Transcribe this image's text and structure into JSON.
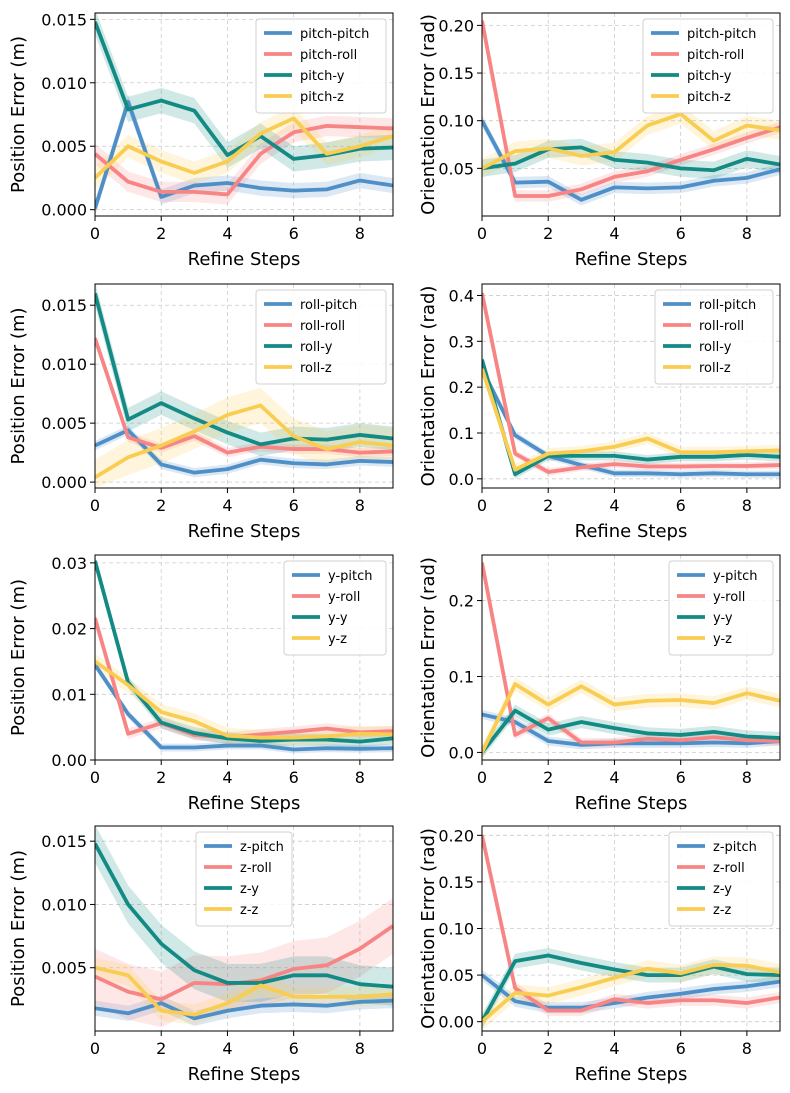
{
  "colors": {
    "pitch": "#4f8fc8",
    "roll": "#f88585",
    "y": "#138a84",
    "z": "#f8cd52"
  },
  "chart_data": [
    {
      "type": "line",
      "xlabel": "Refine Steps",
      "ylabel": "Position Error (m)",
      "xlim": [
        0,
        9
      ],
      "ylim": [
        -0.0005,
        0.0155
      ],
      "xticks": [
        0,
        2,
        4,
        6,
        8
      ],
      "xtick_labels": [
        "0",
        "2",
        "4",
        "6",
        "8"
      ],
      "yticks": [
        0,
        0.005,
        0.01,
        0.015
      ],
      "ytick_labels": [
        "0.000",
        "0.005",
        "0.010",
        "0.015"
      ],
      "legend_pos": "top-right",
      "x": [
        0,
        1,
        2,
        3,
        4,
        5,
        6,
        7,
        8,
        9
      ],
      "series": [
        {
          "name": "pitch-pitch",
          "color_key": "pitch",
          "values": [
            0.0001,
            0.0085,
            0.001,
            0.0019,
            0.0021,
            0.0017,
            0.0015,
            0.0016,
            0.0023,
            0.0019
          ],
          "band": 0.0006
        },
        {
          "name": "pitch-roll",
          "color_key": "roll",
          "values": [
            0.0044,
            0.0022,
            0.0014,
            0.0014,
            0.0012,
            0.0044,
            0.0061,
            0.0066,
            0.0065,
            0.0064
          ],
          "band": 0.0008
        },
        {
          "name": "pitch-y",
          "color_key": "y",
          "values": [
            0.0148,
            0.0079,
            0.0086,
            0.0078,
            0.0043,
            0.0058,
            0.004,
            0.0043,
            0.0048,
            0.0049
          ],
          "band": 0.001
        },
        {
          "name": "pitch-z",
          "color_key": "z",
          "values": [
            0.0025,
            0.005,
            0.0038,
            0.0029,
            0.0038,
            0.006,
            0.0072,
            0.0044,
            0.005,
            0.0058
          ],
          "band": 0.0009
        }
      ]
    },
    {
      "type": "line",
      "xlabel": "Refine Steps",
      "ylabel": "Orientation Error (rad)",
      "xlim": [
        0,
        9
      ],
      "ylim": [
        0,
        0.213
      ],
      "xticks": [
        0,
        2,
        4,
        6,
        8
      ],
      "xtick_labels": [
        "0",
        "2",
        "4",
        "6",
        "8"
      ],
      "yticks": [
        0.05,
        0.1,
        0.15,
        0.2
      ],
      "ytick_labels": [
        "0.05",
        "0.10",
        "0.15",
        "0.20"
      ],
      "legend_pos": "top-right",
      "x": [
        0,
        1,
        2,
        3,
        4,
        5,
        6,
        7,
        8,
        9
      ],
      "series": [
        {
          "name": "pitch-pitch",
          "color_key": "pitch",
          "values": [
            0.1,
            0.035,
            0.036,
            0.017,
            0.03,
            0.029,
            0.03,
            0.037,
            0.04,
            0.049
          ],
          "band": 0.006
        },
        {
          "name": "pitch-roll",
          "color_key": "roll",
          "values": [
            0.205,
            0.021,
            0.021,
            0.028,
            0.041,
            0.047,
            0.059,
            0.07,
            0.082,
            0.093
          ],
          "band": 0.006
        },
        {
          "name": "pitch-y",
          "color_key": "y",
          "values": [
            0.05,
            0.055,
            0.07,
            0.072,
            0.059,
            0.056,
            0.05,
            0.048,
            0.06,
            0.054
          ],
          "band": 0.009
        },
        {
          "name": "pitch-z",
          "color_key": "z",
          "values": [
            0.05,
            0.068,
            0.071,
            0.063,
            0.067,
            0.095,
            0.107,
            0.079,
            0.095,
            0.09
          ],
          "band": 0.01
        }
      ]
    },
    {
      "type": "line",
      "xlabel": "Refine Steps",
      "ylabel": "Position Error (m)",
      "xlim": [
        0,
        9
      ],
      "ylim": [
        -0.0005,
        0.0168
      ],
      "xticks": [
        0,
        2,
        4,
        6,
        8
      ],
      "xtick_labels": [
        "0",
        "2",
        "4",
        "6",
        "8"
      ],
      "yticks": [
        0,
        0.005,
        0.01,
        0.015
      ],
      "ytick_labels": [
        "0.000",
        "0.005",
        "0.010",
        "0.015"
      ],
      "legend_pos": "top-right",
      "x": [
        0,
        1,
        2,
        3,
        4,
        5,
        6,
        7,
        8,
        9
      ],
      "series": [
        {
          "name": "roll-pitch",
          "color_key": "pitch",
          "values": [
            0.0031,
            0.0044,
            0.0015,
            0.0008,
            0.0011,
            0.0019,
            0.0016,
            0.0015,
            0.0018,
            0.0017
          ],
          "band": 0.0004
        },
        {
          "name": "roll-roll",
          "color_key": "roll",
          "values": [
            0.0122,
            0.0038,
            0.0029,
            0.0039,
            0.0025,
            0.003,
            0.0028,
            0.0028,
            0.0025,
            0.0026
          ],
          "band": 0.0004
        },
        {
          "name": "roll-y",
          "color_key": "y",
          "values": [
            0.016,
            0.0053,
            0.0067,
            0.0054,
            0.0042,
            0.0032,
            0.0037,
            0.0036,
            0.004,
            0.0037
          ],
          "band": 0.001
        },
        {
          "name": "roll-z",
          "color_key": "z",
          "values": [
            0.0004,
            0.0021,
            0.0031,
            0.0043,
            0.0057,
            0.0065,
            0.0039,
            0.0028,
            0.0034,
            0.0031
          ],
          "band": 0.0015
        }
      ]
    },
    {
      "type": "line",
      "xlabel": "Refine Steps",
      "ylabel": "Orientation Error (rad)",
      "xlim": [
        0,
        9
      ],
      "ylim": [
        -0.02,
        0.425
      ],
      "xticks": [
        0,
        2,
        4,
        6,
        8
      ],
      "xtick_labels": [
        "0",
        "2",
        "4",
        "6",
        "8"
      ],
      "yticks": [
        0,
        0.1,
        0.2,
        0.3,
        0.4
      ],
      "ytick_labels": [
        "0.0",
        "0.1",
        "0.2",
        "0.3",
        "0.4"
      ],
      "legend_pos": "top-right",
      "x": [
        0,
        1,
        2,
        3,
        4,
        5,
        6,
        7,
        8,
        9
      ],
      "series": [
        {
          "name": "roll-pitch",
          "color_key": "pitch",
          "values": [
            0.24,
            0.095,
            0.05,
            0.03,
            0.012,
            0.012,
            0.01,
            0.012,
            0.01,
            0.01
          ],
          "band": 0.008
        },
        {
          "name": "roll-roll",
          "color_key": "roll",
          "values": [
            0.405,
            0.055,
            0.015,
            0.025,
            0.032,
            0.027,
            0.027,
            0.028,
            0.028,
            0.03
          ],
          "band": 0.008
        },
        {
          "name": "roll-y",
          "color_key": "y",
          "values": [
            0.26,
            0.01,
            0.05,
            0.05,
            0.05,
            0.042,
            0.048,
            0.048,
            0.052,
            0.048
          ],
          "band": 0.01
        },
        {
          "name": "roll-z",
          "color_key": "z",
          "values": [
            0.24,
            0.02,
            0.055,
            0.06,
            0.07,
            0.088,
            0.058,
            0.058,
            0.06,
            0.062
          ],
          "band": 0.012
        }
      ]
    },
    {
      "type": "line",
      "xlabel": "Refine Steps",
      "ylabel": "Position Error (m)",
      "xlim": [
        0,
        9
      ],
      "ylim": [
        0,
        0.0312
      ],
      "xticks": [
        0,
        2,
        4,
        6,
        8
      ],
      "xtick_labels": [
        "0",
        "2",
        "4",
        "6",
        "8"
      ],
      "yticks": [
        0,
        0.01,
        0.02,
        0.03
      ],
      "ytick_labels": [
        "0.00",
        "0.01",
        "0.02",
        "0.03"
      ],
      "legend_pos": "top-right",
      "x": [
        0,
        1,
        2,
        3,
        4,
        5,
        6,
        7,
        8,
        9
      ],
      "series": [
        {
          "name": "y-pitch",
          "color_key": "pitch",
          "values": [
            0.0145,
            0.007,
            0.0019,
            0.0019,
            0.0022,
            0.0022,
            0.0016,
            0.0018,
            0.0017,
            0.0018
          ],
          "band": 0.0006
        },
        {
          "name": "y-roll",
          "color_key": "roll",
          "values": [
            0.0216,
            0.004,
            0.0056,
            0.0038,
            0.0034,
            0.0039,
            0.0043,
            0.0048,
            0.0042,
            0.0044
          ],
          "band": 0.0008
        },
        {
          "name": "y-y",
          "color_key": "y",
          "values": [
            0.0303,
            0.0118,
            0.0057,
            0.0041,
            0.0033,
            0.0029,
            0.0031,
            0.0031,
            0.0028,
            0.0033
          ],
          "band": 0.0009
        },
        {
          "name": "y-z",
          "color_key": "z",
          "values": [
            0.015,
            0.0114,
            0.0073,
            0.0059,
            0.0037,
            0.0034,
            0.0034,
            0.0036,
            0.004,
            0.0039
          ],
          "band": 0.0012
        }
      ]
    },
    {
      "type": "line",
      "xlabel": "Refine Steps",
      "ylabel": "Orientation Error (rad)",
      "xlim": [
        0,
        9
      ],
      "ylim": [
        -0.01,
        0.26
      ],
      "xticks": [
        0,
        2,
        4,
        6,
        8
      ],
      "xtick_labels": [
        "0",
        "2",
        "4",
        "6",
        "8"
      ],
      "yticks": [
        0,
        0.1,
        0.2
      ],
      "ytick_labels": [
        "0.0",
        "0.1",
        "0.2"
      ],
      "legend_pos": "top-right",
      "x": [
        0,
        1,
        2,
        3,
        4,
        5,
        6,
        7,
        8,
        9
      ],
      "series": [
        {
          "name": "y-pitch",
          "color_key": "pitch",
          "values": [
            0.05,
            0.04,
            0.015,
            0.01,
            0.012,
            0.012,
            0.012,
            0.013,
            0.012,
            0.015
          ],
          "band": 0.006
        },
        {
          "name": "y-roll",
          "color_key": "roll",
          "values": [
            0.25,
            0.023,
            0.045,
            0.013,
            0.013,
            0.018,
            0.016,
            0.02,
            0.016,
            0.015
          ],
          "band": 0.006
        },
        {
          "name": "y-y",
          "color_key": "y",
          "values": [
            0.0,
            0.055,
            0.03,
            0.04,
            0.032,
            0.025,
            0.023,
            0.027,
            0.021,
            0.019
          ],
          "band": 0.008
        },
        {
          "name": "y-z",
          "color_key": "z",
          "values": [
            0.0,
            0.09,
            0.063,
            0.087,
            0.063,
            0.068,
            0.069,
            0.065,
            0.078,
            0.068
          ],
          "band": 0.009
        }
      ]
    },
    {
      "type": "line",
      "xlabel": "Refine Steps",
      "ylabel": "Position Error (m)",
      "xlim": [
        0,
        9
      ],
      "ylim": [
        0,
        0.0162
      ],
      "xticks": [
        0,
        2,
        4,
        6,
        8
      ],
      "xtick_labels": [
        "0",
        "2",
        "4",
        "6",
        "8"
      ],
      "yticks": [
        0.005,
        0.01,
        0.015
      ],
      "ytick_labels": [
        "0.005",
        "0.010",
        "0.015"
      ],
      "legend_pos": "top-center",
      "x": [
        0,
        1,
        2,
        3,
        4,
        5,
        6,
        7,
        8,
        9
      ],
      "series": [
        {
          "name": "z-pitch",
          "color_key": "pitch",
          "values": [
            0.0018,
            0.0014,
            0.0022,
            0.001,
            0.0016,
            0.002,
            0.0021,
            0.002,
            0.0023,
            0.0024
          ],
          "band": 0.0006
        },
        {
          "name": "z-roll",
          "color_key": "roll",
          "values": [
            0.0043,
            0.0031,
            0.0025,
            0.0038,
            0.0037,
            0.004,
            0.0049,
            0.0052,
            0.0065,
            0.0083
          ],
          "band": 0.0022
        },
        {
          "name": "z-y",
          "color_key": "y",
          "values": [
            0.0148,
            0.01,
            0.0069,
            0.0048,
            0.0038,
            0.0038,
            0.0044,
            0.0044,
            0.0037,
            0.0035
          ],
          "band": 0.0015
        },
        {
          "name": "z-z",
          "color_key": "z",
          "values": [
            0.005,
            0.0044,
            0.0016,
            0.0013,
            0.0022,
            0.0036,
            0.0027,
            0.0027,
            0.0027,
            0.0029
          ],
          "band": 0.0008
        }
      ]
    },
    {
      "type": "line",
      "xlabel": "Refine Steps",
      "ylabel": "Orientation Error (rad)",
      "xlim": [
        0,
        9
      ],
      "ylim": [
        -0.01,
        0.21
      ],
      "xticks": [
        0,
        2,
        4,
        6,
        8
      ],
      "xtick_labels": [
        "0",
        "2",
        "4",
        "6",
        "8"
      ],
      "yticks": [
        0,
        0.05,
        0.1,
        0.15,
        0.2
      ],
      "ytick_labels": [
        "0.00",
        "0.05",
        "0.10",
        "0.15",
        "0.20"
      ],
      "legend_pos": "top-right",
      "x": [
        0,
        1,
        2,
        3,
        4,
        5,
        6,
        7,
        8,
        9
      ],
      "series": [
        {
          "name": "z-pitch",
          "color_key": "pitch",
          "values": [
            0.05,
            0.022,
            0.015,
            0.015,
            0.02,
            0.026,
            0.03,
            0.035,
            0.038,
            0.043
          ],
          "band": 0.006
        },
        {
          "name": "z-roll",
          "color_key": "roll",
          "values": [
            0.2,
            0.036,
            0.012,
            0.012,
            0.024,
            0.02,
            0.023,
            0.023,
            0.02,
            0.026
          ],
          "band": 0.006
        },
        {
          "name": "z-y",
          "color_key": "y",
          "values": [
            0.0,
            0.065,
            0.071,
            0.063,
            0.056,
            0.05,
            0.05,
            0.059,
            0.051,
            0.05
          ],
          "band": 0.008
        },
        {
          "name": "z-z",
          "color_key": "z",
          "values": [
            0.0,
            0.031,
            0.028,
            0.037,
            0.047,
            0.057,
            0.052,
            0.061,
            0.06,
            0.053
          ],
          "band": 0.009
        }
      ]
    }
  ]
}
